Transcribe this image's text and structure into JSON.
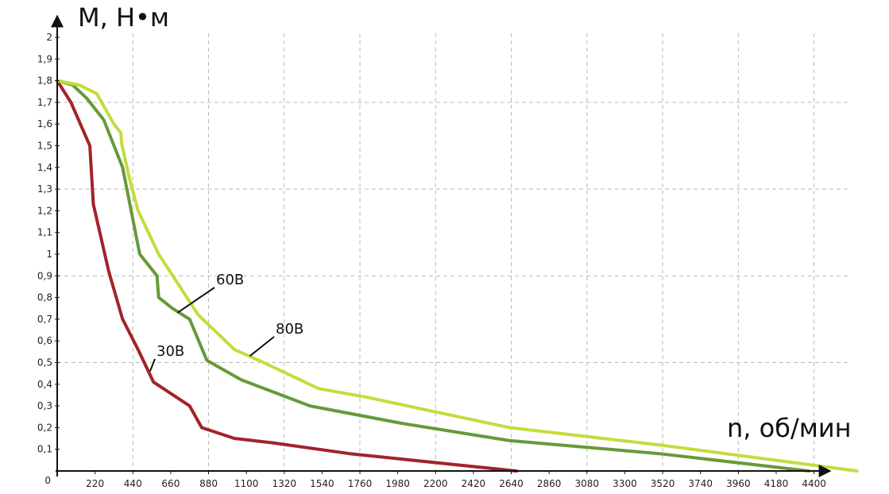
{
  "chart_data": {
    "type": "line",
    "ylabel": "M, Н•м",
    "xlabel": "n, об/мин",
    "xlim": [
      0,
      4600
    ],
    "ylim": [
      0,
      2
    ],
    "x_ticks": [
      "0",
      "220",
      "440",
      "660",
      "880",
      "1100",
      "1320",
      "1540",
      "1760",
      "1980",
      "2200",
      "2420",
      "2640",
      "2860",
      "3080",
      "3300",
      "3520",
      "3740",
      "3960",
      "4180",
      "4400"
    ],
    "y_ticks": [
      "0",
      "0,1",
      "0,2",
      "0,3",
      "0,4",
      "0,5",
      "0,6",
      "0,7",
      "0,8",
      "0,9",
      "1",
      "1,1",
      "1,2",
      "1,3",
      "1,4",
      "1,5",
      "1,6",
      "1,7",
      "1,8",
      "1,9",
      "2"
    ],
    "grid": true,
    "series": [
      {
        "name": "30В",
        "color": "#a3222a",
        "points": [
          [
            0,
            1.8
          ],
          [
            80,
            1.7
          ],
          [
            190,
            1.5
          ],
          [
            210,
            1.23
          ],
          [
            300,
            0.92
          ],
          [
            380,
            0.7
          ],
          [
            470,
            0.56
          ],
          [
            560,
            0.41
          ],
          [
            770,
            0.3
          ],
          [
            840,
            0.2
          ],
          [
            1030,
            0.15
          ],
          [
            1250,
            0.13
          ],
          [
            1700,
            0.08
          ],
          [
            2300,
            0.03
          ],
          [
            2670,
            0.0
          ]
        ]
      },
      {
        "name": "60В",
        "color": "#669a38",
        "points": [
          [
            0,
            1.8
          ],
          [
            90,
            1.78
          ],
          [
            170,
            1.72
          ],
          [
            270,
            1.62
          ],
          [
            380,
            1.4
          ],
          [
            480,
            1.0
          ],
          [
            580,
            0.9
          ],
          [
            590,
            0.8
          ],
          [
            670,
            0.75
          ],
          [
            770,
            0.7
          ],
          [
            870,
            0.51
          ],
          [
            1070,
            0.42
          ],
          [
            1470,
            0.3
          ],
          [
            2000,
            0.22
          ],
          [
            2630,
            0.14
          ],
          [
            3500,
            0.08
          ],
          [
            4370,
            0.0
          ]
        ]
      },
      {
        "name": "80В",
        "color": "#c4dc3e",
        "points": [
          [
            0,
            1.8
          ],
          [
            130,
            1.78
          ],
          [
            230,
            1.74
          ],
          [
            330,
            1.6
          ],
          [
            370,
            1.56
          ],
          [
            375,
            1.51
          ],
          [
            420,
            1.35
          ],
          [
            470,
            1.2
          ],
          [
            590,
            1.0
          ],
          [
            820,
            0.72
          ],
          [
            1030,
            0.56
          ],
          [
            1200,
            0.5
          ],
          [
            1520,
            0.38
          ],
          [
            1800,
            0.34
          ],
          [
            2630,
            0.2
          ],
          [
            3500,
            0.12
          ],
          [
            4650,
            0.0
          ]
        ]
      }
    ],
    "annotations": [
      {
        "text": "60В",
        "series": "60В"
      },
      {
        "text": "80В",
        "series": "80В"
      },
      {
        "text": "30В",
        "series": "30В"
      }
    ]
  }
}
